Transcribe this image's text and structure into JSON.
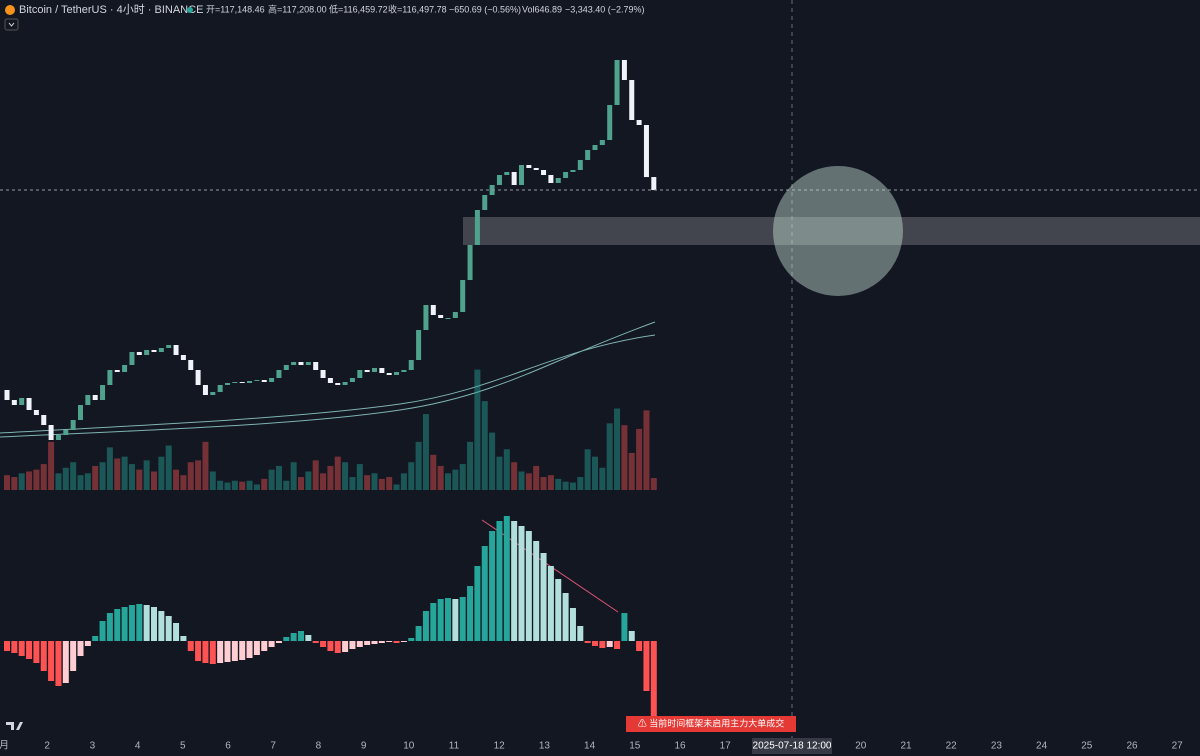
{
  "header": {
    "symbol": "Bitcoin / TetherUS · 4小时 · BINANCE",
    "open": "开=117,148.46",
    "high": "高=117,208.00",
    "low": "低=116,459.72",
    "close": "收=116,497.78",
    "change": "−650.69 (−0.56%)",
    "volume": "Vol646.89",
    "change_day": "−3,343.40 (−2.79%)"
  },
  "chart_data": {
    "type": "candlestick",
    "x_labels": [
      "月",
      "2",
      "3",
      "4",
      "5",
      "6",
      "7",
      "8",
      "9",
      "10",
      "11",
      "12",
      "13",
      "14",
      "15",
      "16",
      "17",
      "20",
      "21",
      "22",
      "23",
      "24",
      "25",
      "26",
      "27"
    ],
    "crosshair_label": "2025-07-18  12:00",
    "alert": "⚠ 当前时间框架未启用主力大单成交",
    "open": [
      106500,
      106000,
      105750,
      106100,
      105500,
      105250,
      104750,
      104000,
      104250,
      104500,
      105000,
      105750,
      106250,
      106000,
      106750,
      107500,
      107400,
      107750,
      108400,
      108250,
      108500,
      108400,
      108600,
      108750,
      108250,
      108000,
      107500,
      106750,
      106250,
      106400,
      106750,
      106850,
      106900,
      106850,
      106950,
      107000,
      106900,
      107100,
      107500,
      107750,
      107900,
      107750,
      107900,
      107500,
      107100,
      106850,
      106750,
      106900,
      107100,
      107500,
      107400,
      107600,
      107350,
      107250,
      107400,
      107500,
      108000,
      109500,
      110750,
      110250,
      110100,
      110100,
      110400,
      112000,
      113750,
      115500,
      116250,
      116750,
      117250,
      117400,
      116750,
      117750,
      117600,
      117500,
      117250,
      116850,
      117100,
      117400,
      117500,
      118000,
      118500,
      118750,
      119000,
      120750,
      123000,
      122000,
      120000,
      119750,
      117148.46
    ],
    "close": [
      106000,
      105750,
      106100,
      105500,
      105250,
      104750,
      104000,
      104250,
      104500,
      105000,
      105750,
      106250,
      106000,
      106750,
      107500,
      107400,
      107750,
      108400,
      108250,
      108500,
      108400,
      108600,
      108750,
      108250,
      108000,
      107500,
      106750,
      106250,
      106400,
      106750,
      106850,
      106900,
      106850,
      106950,
      107000,
      106900,
      107100,
      107500,
      107750,
      107900,
      107750,
      107900,
      107500,
      107100,
      106850,
      106750,
      106900,
      107100,
      107500,
      107400,
      107600,
      107350,
      107250,
      107400,
      107500,
      108000,
      109500,
      110750,
      110250,
      110100,
      110100,
      110400,
      112000,
      113750,
      115500,
      116250,
      116750,
      117250,
      117400,
      116750,
      117750,
      117600,
      117500,
      117250,
      116850,
      117100,
      117400,
      117500,
      118000,
      118500,
      118750,
      119000,
      120750,
      123000,
      122000,
      120000,
      119750,
      117148.46,
      116497.78
    ],
    "volume": [
      800,
      700,
      900,
      1000,
      1100,
      1400,
      2600,
      900,
      1200,
      1500,
      800,
      900,
      1300,
      1500,
      2300,
      1700,
      1800,
      1400,
      1100,
      1600,
      1000,
      1800,
      2400,
      1100,
      800,
      1500,
      1600,
      2600,
      1000,
      500,
      400,
      500,
      450,
      500,
      300,
      600,
      1100,
      1300,
      500,
      1500,
      700,
      1000,
      1600,
      900,
      1300,
      1800,
      1500,
      700,
      1400,
      800,
      900,
      600,
      700,
      300,
      900,
      1500,
      2600,
      4100,
      1900,
      1300,
      900,
      1100,
      1400,
      2600,
      6500,
      4800,
      3100,
      1800,
      2200,
      1500,
      1000,
      900,
      1300,
      700,
      800,
      600,
      450,
      400,
      700,
      2200,
      1800,
      1200,
      3600,
      4400,
      3500,
      2000,
      3300,
      4300,
      646.89
    ],
    "macd_hist": [
      -100,
      -120,
      -150,
      -180,
      -220,
      -300,
      -400,
      -450,
      -420,
      -300,
      -150,
      -50,
      50,
      200,
      280,
      320,
      340,
      360,
      370,
      360,
      340,
      300,
      250,
      180,
      50,
      -100,
      -200,
      -220,
      -230,
      -220,
      -210,
      -200,
      -190,
      -170,
      -140,
      -100,
      -60,
      -20,
      40,
      80,
      100,
      60,
      -20,
      -60,
      -100,
      -120,
      -110,
      -80,
      -60,
      -40,
      -30,
      -20,
      -10,
      -20,
      -10,
      30,
      150,
      300,
      380,
      420,
      430,
      420,
      440,
      550,
      750,
      950,
      1100,
      1200,
      1250,
      1200,
      1150,
      1100,
      1000,
      880,
      750,
      620,
      480,
      330,
      150,
      -20,
      -50,
      -70,
      -60,
      -80,
      280,
      100,
      -100,
      -500,
      -750
    ]
  }
}
